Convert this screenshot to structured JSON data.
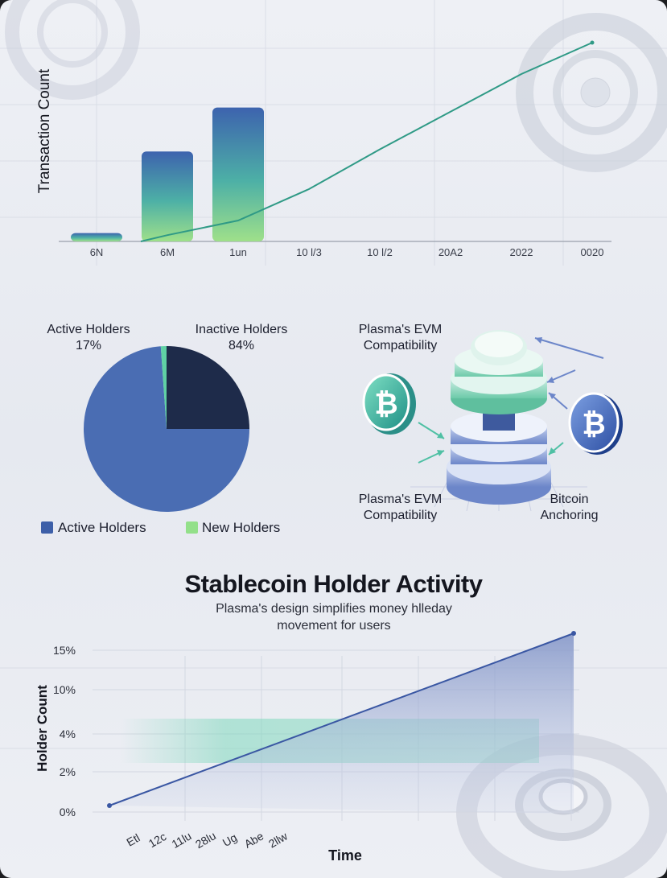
{
  "colors": {
    "bar_top": "#3d63ae",
    "bar_mid": "#4db0a6",
    "bar_bottom": "#9fe08a",
    "line": "#2f9a86",
    "pie_main": "#4a6db3",
    "pie_dark": "#1e2b4a",
    "pie_green": "#5fd1a4",
    "legend_green": "#93e08a",
    "holder_line": "#3a57a3",
    "band": "#7fd8bd"
  },
  "chart_data": [
    {
      "type": "bar",
      "ylabel": "Transaction Count",
      "categories": [
        "6N",
        "6M",
        "1un",
        "10 l/3",
        "10 l/2",
        "20A2",
        "2022",
        "0020"
      ],
      "bar_values": [
        4,
        43,
        64,
        null,
        null,
        null,
        null,
        null
      ],
      "line_values": [
        0,
        3,
        10,
        25,
        44,
        62,
        80,
        95
      ],
      "ylim": [
        0,
        100
      ]
    },
    {
      "type": "pie",
      "slices": [
        {
          "name": "Active Holders",
          "value": 17
        },
        {
          "name": "Inactive Holders",
          "value": 84
        }
      ],
      "labels": [
        {
          "title": "Active Holders",
          "value": "17%"
        },
        {
          "title": "Inactive Holders",
          "value": "84%"
        }
      ],
      "legend": [
        {
          "name": "Active Holders"
        },
        {
          "name": "New Holders"
        }
      ]
    },
    {
      "type": "line",
      "title": "Stablecoin Holder Activity",
      "subtitle": "Plasma's design simplifies money hlleday movement for users",
      "ylabel": "Holder Count",
      "xlabel": "Time",
      "yticks": [
        "0%",
        "2%",
        "4%",
        "10%",
        "15%"
      ],
      "xticks": [
        "Etl",
        "12c",
        "11lu",
        "28lu",
        "Ug",
        "Abe",
        "2llw"
      ],
      "x": [
        0,
        1
      ],
      "y": [
        0,
        15
      ],
      "ylim": [
        0,
        15
      ]
    }
  ],
  "diagram": {
    "labels": {
      "top_left": "Plasma's EVM Compatibility",
      "bottom_left": "Plasma's EVM Compatibility",
      "bottom_right": "Bitcoin Anchoring"
    },
    "coin_symbol": "₿"
  }
}
